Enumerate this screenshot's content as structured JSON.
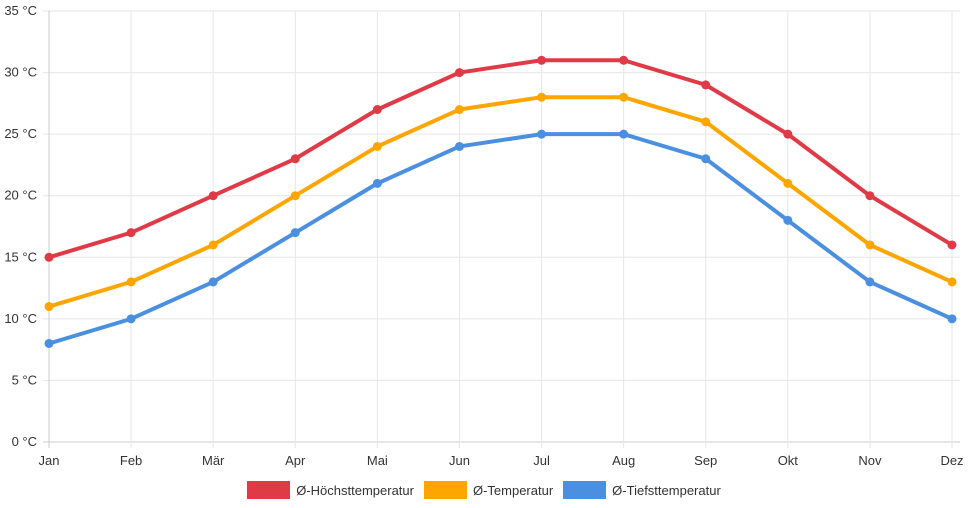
{
  "chart_data": {
    "type": "line",
    "categories": [
      "Jan",
      "Feb",
      "Mär",
      "Apr",
      "Mai",
      "Jun",
      "Jul",
      "Aug",
      "Sep",
      "Okt",
      "Nov",
      "Dez"
    ],
    "ylim": [
      0,
      35
    ],
    "yticks": [
      0,
      5,
      10,
      15,
      20,
      25,
      30,
      35
    ],
    "yunit": " °C",
    "ytick_labels": [
      "0 °C",
      "5 °C",
      "10 °C",
      "15 °C",
      "20 °C",
      "25 °C",
      "30 °C",
      "35 °C"
    ],
    "grid": true,
    "legend_position": "bottom",
    "series": [
      {
        "name": "Ø-Höchsttemperatur",
        "color": "#e03a47",
        "values": [
          15,
          17,
          20,
          23,
          27,
          30,
          31,
          31,
          29,
          25,
          20,
          16
        ]
      },
      {
        "name": "Ø-Temperatur",
        "color": "#ffa500",
        "values": [
          11,
          13,
          16,
          20,
          24,
          27,
          28,
          28,
          26,
          21,
          16,
          13
        ]
      },
      {
        "name": "Ø-Tiefsttemperatur",
        "color": "#4a8fe0",
        "values": [
          8,
          10,
          13,
          17,
          21,
          24,
          25,
          25,
          23,
          18,
          13,
          10
        ]
      }
    ]
  }
}
